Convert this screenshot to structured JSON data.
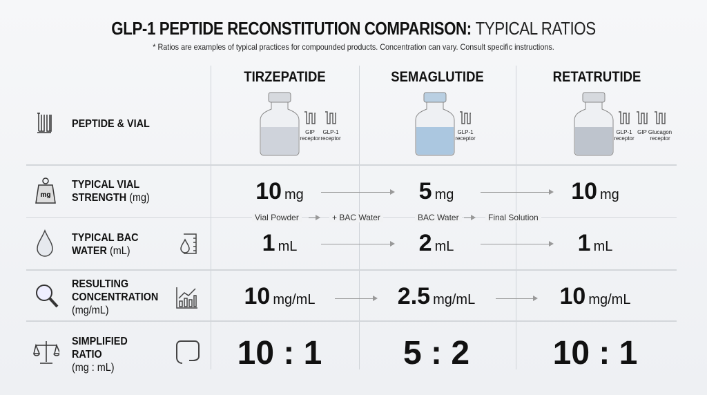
{
  "title": {
    "bold": "GLP-1 PEPTIDE RECONSTITUTION COMPARISON:",
    "light": "TYPICAL RATIOS"
  },
  "subtitle": "* Ratios are examples of typical practices for compounded products. Concentration can vary.  Consult specific instructions.",
  "columns": [
    {
      "name": "TIRZEPATIDE",
      "receptors": [
        [
          "GIP",
          "receptor"
        ],
        [
          "GLP-1",
          "receptor"
        ]
      ],
      "liquid": "#c9ced6"
    },
    {
      "name": "SEMAGLUTIDE",
      "receptors": [
        [
          "GLP-1",
          "receptor"
        ]
      ],
      "liquid": "#9fbfdc"
    },
    {
      "name": "RETATRUTIDE",
      "receptors": [
        [
          "GLP-1",
          "receptor"
        ],
        [
          "GIP",
          ""
        ],
        [
          "Glucagon",
          "receptor"
        ]
      ],
      "liquid": "#b5bcc6"
    }
  ],
  "rows": {
    "peptide": {
      "label": "PEPTIDE & VIAL",
      "icon": "receptor-icon"
    },
    "strength": {
      "label1": "TYPICAL VIAL",
      "label2": "STRENGTH",
      "unit": "(mg)",
      "icon": "weight-icon",
      "icon_text": "mg",
      "values": [
        "10",
        "5",
        "10"
      ],
      "value_unit": "mg"
    },
    "water": {
      "label1": "TYPICAL BAC",
      "label2": "WATER",
      "unit": "(mL)",
      "icon": "water-drop-icon",
      "values": [
        "1",
        "2",
        "1"
      ],
      "value_unit": "mL"
    },
    "conc": {
      "label1": "RESULTING",
      "label2": "CONCENTRATION",
      "unit": "(mg/mL)",
      "icon": "magnifier-icon",
      "values": [
        "10",
        "2.5",
        "10"
      ],
      "value_unit": "mg/mL"
    },
    "ratio": {
      "label1": "SIMPLIFIED",
      "label2": "RATIO",
      "unit": "(mg : mL)",
      "icon": "scale-icon",
      "values": [
        "10 : 1",
        "5 : 2",
        "10 : 1"
      ]
    }
  },
  "flow": [
    "Vial Powder",
    "+ BAC Water",
    "BAC Water",
    "Final Solution"
  ]
}
